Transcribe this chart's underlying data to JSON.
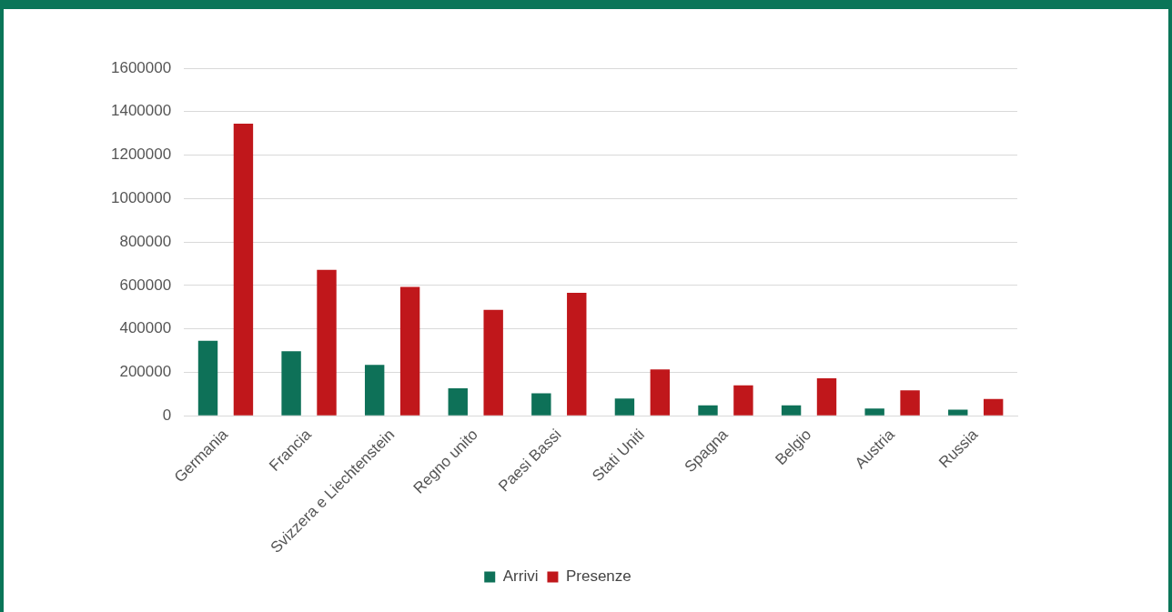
{
  "chart_data": {
    "type": "bar",
    "categories": [
      "Germania",
      "Francia",
      "Svizzera e Liechtenstein",
      "Regno unito",
      "Paesi Bassi",
      "Stati Uniti",
      "Spagna",
      "Belgio",
      "Austria",
      "Russia"
    ],
    "series": [
      {
        "name": "Arrivi",
        "color": "#0e7158",
        "values": [
          345000,
          297000,
          234000,
          127000,
          104000,
          80000,
          48000,
          48000,
          34000,
          28000
        ]
      },
      {
        "name": "Presenze",
        "color": "#c0171b",
        "values": [
          1345000,
          672000,
          593000,
          488000,
          566000,
          214000,
          140000,
          173000,
          117000,
          78000
        ]
      }
    ],
    "ylim": [
      0,
      1600000
    ],
    "yticks": [
      0,
      200000,
      400000,
      600000,
      800000,
      1000000,
      1200000,
      1400000,
      1600000
    ],
    "grid": "y",
    "legend": "bottom"
  }
}
